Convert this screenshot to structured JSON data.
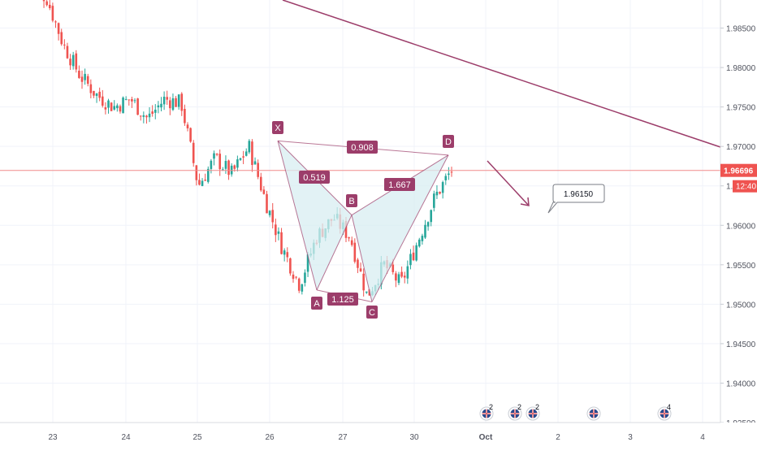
{
  "chart_data": {
    "type": "candlestick",
    "title": "",
    "xlabel": "",
    "ylabel": "",
    "x_ticks": [
      "23",
      "24",
      "25",
      "26",
      "27",
      "30",
      "Oct",
      "2",
      "3",
      "4"
    ],
    "y_ticks": [
      "1.98500",
      "1.98000",
      "1.97500",
      "1.97000",
      "1.96500",
      "1.96000",
      "1.95500",
      "1.95000",
      "1.94500",
      "1.94000",
      "1.93500"
    ],
    "ylim": [
      1.935,
      1.99
    ],
    "grid": true,
    "series": [
      {
        "description": "approximate close prices per session segment (read from chart)",
        "points": [
          {
            "x": "22 late",
            "y": 1.99
          },
          {
            "x": "23 00:00",
            "y": 1.989
          },
          {
            "x": "23 06:00",
            "y": 1.983
          },
          {
            "x": "23 12:00",
            "y": 1.979
          },
          {
            "x": "23 18:00",
            "y": 1.9765
          },
          {
            "x": "24 00:00",
            "y": 1.975
          },
          {
            "x": "24 06:00",
            "y": 1.976
          },
          {
            "x": "24 12:00",
            "y": 1.9735
          },
          {
            "x": "24 18:00",
            "y": 1.976
          },
          {
            "x": "25 00:00",
            "y": 1.9755
          },
          {
            "x": "25 06:00",
            "y": 1.965
          },
          {
            "x": "25 12:00",
            "y": 1.9685
          },
          {
            "x": "25 18:00",
            "y": 1.9665
          },
          {
            "x": "26 00:00",
            "y": 1.97
          },
          {
            "x": "26 06:00",
            "y": 1.963
          },
          {
            "x": "26 12:00",
            "y": 1.957
          },
          {
            "x": "26 18:00",
            "y": 1.9525
          },
          {
            "x": "27 00:00",
            "y": 1.9585
          },
          {
            "x": "27 06:00",
            "y": 1.961
          },
          {
            "x": "27 12:00",
            "y": 1.9585
          },
          {
            "x": "27 18:00",
            "y": 1.951
          },
          {
            "x": "30 00:00",
            "y": 1.955
          },
          {
            "x": "30 06:00",
            "y": 1.9525
          },
          {
            "x": "30 12:00",
            "y": 1.958
          },
          {
            "x": "30 18:00",
            "y": 1.9635
          },
          {
            "x": "30 late",
            "y": 1.967
          }
        ]
      }
    ],
    "pattern": {
      "points": [
        {
          "label": "X",
          "x": "26",
          "y": 1.9707
        },
        {
          "label": "A",
          "x": "26 late",
          "y": 1.9518
        },
        {
          "label": "B",
          "x": "27",
          "y": 1.9613
        },
        {
          "label": "C",
          "x": "27 late",
          "y": 1.9503
        },
        {
          "label": "D",
          "x": "30 late",
          "y": 1.9689
        }
      ],
      "ratios": [
        "0.519",
        "1.667",
        "0.908",
        "1.125"
      ]
    },
    "current_price": "1.96696",
    "countdown": "12:40",
    "callout_value": "1.96150",
    "events": [
      {
        "badge": "2",
        "icon": "flag"
      },
      {
        "badge": "2",
        "icon": "flag"
      },
      {
        "badge": "2",
        "icon": "flag"
      },
      {
        "badge": "",
        "icon": "flag"
      },
      {
        "badge": "4",
        "icon": "flag"
      }
    ],
    "colors": {
      "up": "#26a69a",
      "down": "#ef5350",
      "pattern": "#9c3d6a",
      "pattern_fill": "#d8eef2",
      "trendline": "#9c3d6a",
      "price_line": "#f08c8c"
    }
  }
}
